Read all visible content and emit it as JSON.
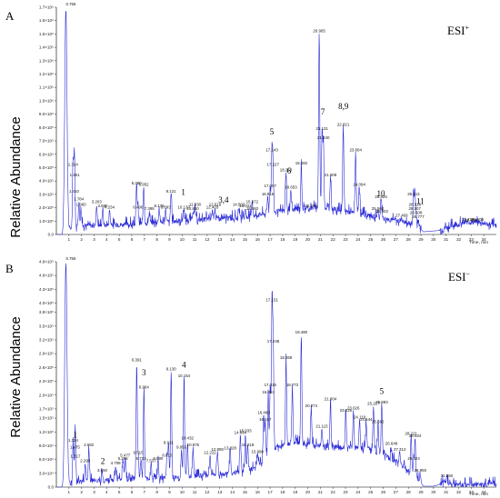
{
  "chart_data": [
    {
      "type": "line",
      "panel_label": "A",
      "ion_mode": "ESI",
      "ion_sign": "+",
      "ylabel": "Relative Abundance",
      "xlabel": "Time, min",
      "xlim": [
        0,
        35
      ],
      "ylim": [
        0,
        1700000.0
      ],
      "x_ticks": [
        1,
        2,
        3,
        4,
        5,
        6,
        7,
        8,
        9,
        10,
        11,
        12,
        13,
        14,
        15,
        16,
        17,
        18,
        19,
        20,
        21,
        22,
        23,
        24,
        25,
        26,
        27,
        28,
        29,
        30,
        31,
        32,
        33,
        34
      ],
      "y_ticks": [
        {
          "v": 1700000.0,
          "t": "1.7×10⁶"
        },
        {
          "v": 1600000.0,
          "t": "1.6×10⁶"
        },
        {
          "v": 1500000.0,
          "t": "1.5×10⁶"
        },
        {
          "v": 1400000.0,
          "t": "1.4×10⁶"
        },
        {
          "v": 1300000.0,
          "t": "1.3×10⁶"
        },
        {
          "v": 1200000.0,
          "t": "1.2×10⁶"
        },
        {
          "v": 1100000.0,
          "t": "1.1×10⁶"
        },
        {
          "v": 1000000.0,
          "t": "1.0×10⁶"
        },
        {
          "v": 900000.0,
          "t": "9.0×10⁵"
        },
        {
          "v": 800000.0,
          "t": "8.0×10⁵"
        },
        {
          "v": 700000.0,
          "t": "7.0×10⁵"
        },
        {
          "v": 600000.0,
          "t": "6.0×10⁵"
        },
        {
          "v": 500000.0,
          "t": "5.0×10⁵"
        },
        {
          "v": 400000.0,
          "t": "4.0×10⁵"
        },
        {
          "v": 300000.0,
          "t": "3.0×10⁵"
        },
        {
          "v": 200000.0,
          "t": "2.0×10⁵"
        },
        {
          "v": 100000.0,
          "t": "1.0×10⁵"
        },
        {
          "v": 0,
          "t": "0.0"
        }
      ],
      "baseline": [
        [
          0,
          20000.0
        ],
        [
          0.5,
          20000.0
        ],
        [
          2,
          60000.0
        ],
        [
          6,
          70000.0
        ],
        [
          10,
          100000.0
        ],
        [
          15,
          120000.0
        ],
        [
          17,
          160000.0
        ],
        [
          19,
          180000.0
        ],
        [
          21,
          200000.0
        ],
        [
          23,
          170000.0
        ],
        [
          25,
          130000.0
        ],
        [
          27,
          100000.0
        ],
        [
          28.8,
          60000.0
        ],
        [
          29.2,
          20000.0
        ],
        [
          30.5,
          30000.0
        ],
        [
          31.5,
          60000.0
        ],
        [
          32.5,
          80000.0
        ],
        [
          33.5,
          90000.0
        ],
        [
          34.3,
          70000.0
        ],
        [
          35,
          60000.0
        ]
      ],
      "peaks": [
        {
          "rt": 0.756,
          "h": 1700000.0,
          "label": "0.756"
        },
        {
          "rt": 1.324,
          "h": 500000.0,
          "label": "1.324"
        },
        {
          "rt": 1.451,
          "h": 420000.0,
          "label": "1.451"
        },
        {
          "rt": 1.41,
          "h": 300000.0,
          "label": "1.410"
        },
        {
          "rt": 1.784,
          "h": 240000.0,
          "label": "1.784"
        },
        {
          "rt": 1.96,
          "h": 200000.0,
          "label": "1.960"
        },
        {
          "rt": 3.203,
          "h": 220000.0,
          "label": "3.203"
        },
        {
          "rt": 3.69,
          "h": 190000.0,
          "label": "3.690"
        },
        {
          "rt": 4.234,
          "h": 180000.0,
          "label": "4.234"
        },
        {
          "rt": 6.38,
          "h": 360000.0,
          "label": "6.380"
        },
        {
          "rt": 6.952,
          "h": 350000.0,
          "label": "6.952"
        },
        {
          "rt": 6.496,
          "h": 180000.0,
          "label": "6.496"
        },
        {
          "rt": 7.395,
          "h": 170000.0,
          "label": "7.395"
        },
        {
          "rt": 8.176,
          "h": 190000.0,
          "label": "8.176"
        },
        {
          "rt": 8.693,
          "h": 180000.0,
          "label": "8.693"
        },
        {
          "rt": 9.121,
          "h": 300000.0,
          "label": "9.121"
        },
        {
          "rt": 10.137,
          "h": 180000.0,
          "label": "10.137"
        },
        {
          "rt": 10.85,
          "h": 170000.0,
          "label": "10.850"
        },
        {
          "rt": 11.03,
          "h": 200000.0,
          "label": "11.030"
        },
        {
          "rt": 12.403,
          "h": 180000.0,
          "label": "12.403"
        },
        {
          "rt": 12.618,
          "h": 200000.0,
          "label": "12.618"
        },
        {
          "rt": 14.503,
          "h": 200000.0,
          "label": "14.503"
        },
        {
          "rt": 15.031,
          "h": 190000.0,
          "label": "15.031"
        },
        {
          "rt": 15.592,
          "h": 170000.0,
          "label": "15.592"
        },
        {
          "rt": 15.572,
          "h": 220000.0,
          "label": "15.572"
        },
        {
          "rt": 16.816,
          "h": 280000.0,
          "label": "16.816"
        },
        {
          "rt": 17.007,
          "h": 340000.0,
          "label": "17.007"
        },
        {
          "rt": 17.143,
          "h": 610000.0,
          "label": "17.143"
        },
        {
          "rt": 17.227,
          "h": 500000.0,
          "label": "17.227"
        },
        {
          "rt": 18.258,
          "h": 460000.0,
          "label": "18.258"
        },
        {
          "rt": 18.653,
          "h": 330000.0,
          "label": "18.653"
        },
        {
          "rt": 19.482,
          "h": 510000.0,
          "label": "19.482"
        },
        {
          "rt": 20.26,
          "h": 190000.0,
          "label": "20.260"
        },
        {
          "rt": 20.905,
          "h": 1500000.0,
          "label": "20.905"
        },
        {
          "rt": 21.131,
          "h": 770000.0,
          "label": "21.131"
        },
        {
          "rt": 21.24,
          "h": 700000.0,
          "label": "21.240"
        },
        {
          "rt": 21.808,
          "h": 420000.0,
          "label": "21.808"
        },
        {
          "rt": 22.821,
          "h": 800000.0,
          "label": "22.821"
        },
        {
          "rt": 23.804,
          "h": 610000.0,
          "label": "23.804"
        },
        {
          "rt": 24.094,
          "h": 350000.0,
          "label": "24.094"
        },
        {
          "rt": 25.564,
          "h": 170000.0,
          "label": "25.564"
        },
        {
          "rt": 25.825,
          "h": 260000.0,
          "label": "25.825"
        },
        {
          "rt": 25.902,
          "h": 150000.0,
          "label": "25.902"
        },
        {
          "rt": 27.469,
          "h": 120000.0,
          "label": "27.469"
        },
        {
          "rt": 28.413,
          "h": 280000.0,
          "label": "28.413"
        },
        {
          "rt": 28.516,
          "h": 200000.0,
          "label": "28.516"
        },
        {
          "rt": 28.507,
          "h": 170000.0,
          "label": "28.507"
        },
        {
          "rt": 28.608,
          "h": 140000.0,
          "label": "28.608"
        },
        {
          "rt": 28.777,
          "h": 110000.0,
          "label": "28.777"
        },
        {
          "rt": 32.739,
          "h": 90000.0,
          "label": "32.739"
        },
        {
          "rt": 32.98,
          "h": 80000.0,
          "label": "32.980"
        },
        {
          "rt": 33.505,
          "h": 90000.0,
          "label": "33.505"
        }
      ],
      "compounds": [
        {
          "label": "1",
          "rt": 10.1,
          "h": 270000.0
        },
        {
          "label": "3,4",
          "rt": 13.3,
          "h": 210000.0
        },
        {
          "label": "5",
          "rt": 17.14,
          "h": 720000.0
        },
        {
          "label": "6",
          "rt": 18.5,
          "h": 430000.0
        },
        {
          "label": "7",
          "rt": 21.2,
          "h": 870000.0
        },
        {
          "label": "8,9",
          "rt": 22.83,
          "h": 910000.0
        },
        {
          "label": "10",
          "rt": 25.82,
          "h": 260000.0
        },
        {
          "label": "11",
          "rt": 28.95,
          "h": 200000.0
        }
      ]
    },
    {
      "type": "line",
      "panel_label": "B",
      "ion_mode": "ESI",
      "ion_sign": "−",
      "ylabel": "Relative Abundance",
      "xlabel": "Time, min",
      "xlim": [
        0,
        35
      ],
      "ylim": [
        0,
        490000.0
      ],
      "x_ticks": [
        1,
        2,
        3,
        4,
        5,
        6,
        7,
        8,
        9,
        10,
        11,
        12,
        13,
        14,
        15,
        16,
        17,
        18,
        19,
        20,
        21,
        22,
        23,
        24,
        25,
        26,
        27,
        28,
        29,
        30,
        31,
        32,
        33,
        34
      ],
      "y_ticks": [
        {
          "v": 490000.0,
          "t": "4.9×10⁵"
        },
        {
          "v": 460000.0,
          "t": "4.6×10⁵"
        },
        {
          "v": 430000.0,
          "t": "4.3×10⁵"
        },
        {
          "v": 400000.0,
          "t": "4.0×10⁵"
        },
        {
          "v": 380000.0,
          "t": "3.8×10⁵"
        },
        {
          "v": 350000.0,
          "t": "3.5×10⁵"
        },
        {
          "v": 320000.0,
          "t": "3.2×10⁵"
        },
        {
          "v": 290000.0,
          "t": "2.9×10⁵"
        },
        {
          "v": 260000.0,
          "t": "2.6×10⁵"
        },
        {
          "v": 230000.0,
          "t": "2.3×10⁵"
        },
        {
          "v": 200000.0,
          "t": "2.0×10⁵"
        },
        {
          "v": 170000.0,
          "t": "1.7×10⁵"
        },
        {
          "v": 150000.0,
          "t": "1.5×10⁵"
        },
        {
          "v": 120000.0,
          "t": "1.2×10⁵"
        },
        {
          "v": 90000.0,
          "t": "9.0×10⁴"
        },
        {
          "v": 60000.0,
          "t": "6.0×10⁴"
        },
        {
          "v": 30000.0,
          "t": "3.0×10⁴"
        },
        {
          "v": 0,
          "t": "0.0"
        }
      ],
      "baseline": [
        [
          0,
          1000.0
        ],
        [
          0.5,
          1000.0
        ],
        [
          1.5,
          10000.0
        ],
        [
          3,
          12000.0
        ],
        [
          6,
          15000.0
        ],
        [
          10,
          20000.0
        ],
        [
          13,
          26000.0
        ],
        [
          15,
          32000.0
        ],
        [
          16.5,
          50000.0
        ],
        [
          17.5,
          85000.0
        ],
        [
          19,
          95000.0
        ],
        [
          21,
          88000.0
        ],
        [
          23,
          85000.0
        ],
        [
          25,
          82000.0
        ],
        [
          27,
          55000.0
        ],
        [
          28.5,
          25000.0
        ],
        [
          29.2,
          2000.0
        ],
        [
          30,
          2000.0
        ],
        [
          30.8,
          8000.0
        ],
        [
          31.6,
          3000.0
        ],
        [
          35,
          3000.0
        ]
      ],
      "peaks": [
        {
          "rt": 0.756,
          "h": 490000.0,
          "label": "0.756"
        },
        {
          "rt": 1.334,
          "h": 95000.0,
          "label": "1.334"
        },
        {
          "rt": 1.475,
          "h": 80000.0,
          "label": "1.475"
        },
        {
          "rt": 1.517,
          "h": 60000.0,
          "label": "1.517"
        },
        {
          "rt": 2.298,
          "h": 50000.0,
          "label": "2.298"
        },
        {
          "rt": 2.582,
          "h": 85000.0,
          "label": "2.582"
        },
        {
          "rt": 3.65,
          "h": 30000.0,
          "label": "3.650"
        },
        {
          "rt": 4.708,
          "h": 45000.0,
          "label": "4.708"
        },
        {
          "rt": 5.477,
          "h": 62000.0,
          "label": "5.477"
        },
        {
          "rt": 5.296,
          "h": 55000.0,
          "label": "5.296"
        },
        {
          "rt": 6.515,
          "h": 68000.0,
          "label": "6.515"
        },
        {
          "rt": 6.391,
          "h": 270000.0,
          "label": "6.391"
        },
        {
          "rt": 6.964,
          "h": 210000.0,
          "label": "6.964"
        },
        {
          "rt": 6.733,
          "h": 55000.0,
          "label": "6.733"
        },
        {
          "rt": 7.537,
          "h": 50000.0,
          "label": "7.537"
        },
        {
          "rt": 8.09,
          "h": 55000.0,
          "label": "8.090"
        },
        {
          "rt": 8.81,
          "h": 62000.0,
          "label": "8.810"
        },
        {
          "rt": 8.921,
          "h": 90000.0,
          "label": "8.921"
        },
        {
          "rt": 9.13,
          "h": 250000.0,
          "label": "9.130"
        },
        {
          "rt": 9.955,
          "h": 80000.0,
          "label": "9.955"
        },
        {
          "rt": 10.154,
          "h": 235000.0,
          "label": "10.154"
        },
        {
          "rt": 10.432,
          "h": 100000.0,
          "label": "10.432"
        },
        {
          "rt": 10.875,
          "h": 85000.0,
          "label": "10.875"
        },
        {
          "rt": 12.222,
          "h": 68000.0,
          "label": "12.222"
        },
        {
          "rt": 12.808,
          "h": 75000.0,
          "label": "12.808"
        },
        {
          "rt": 13.828,
          "h": 78000.0,
          "label": "13.828"
        },
        {
          "rt": 14.634,
          "h": 112000.0,
          "label": "14.634"
        },
        {
          "rt": 15.033,
          "h": 116000.0,
          "label": "15.033"
        },
        {
          "rt": 15.218,
          "h": 85000.0,
          "label": "15.218"
        },
        {
          "rt": 15.998,
          "h": 70000.0,
          "label": "15.998"
        },
        {
          "rt": 16.617,
          "h": 140000.0,
          "label": "16.617"
        },
        {
          "rt": 16.49,
          "h": 155000.0,
          "label": "16.490"
        },
        {
          "rt": 16.853,
          "h": 200000.0,
          "label": "16.853"
        },
        {
          "rt": 17.015,
          "h": 215000.0,
          "label": "17.015"
        },
        {
          "rt": 17.151,
          "h": 400000.0,
          "label": "17.151"
        },
        {
          "rt": 17.248,
          "h": 310000.0,
          "label": "17.248"
        },
        {
          "rt": 18.268,
          "h": 275000.0,
          "label": "18.268"
        },
        {
          "rt": 18.772,
          "h": 215000.0,
          "label": "18.772"
        },
        {
          "rt": 19.48,
          "h": 330000.0,
          "label": "19.480"
        },
        {
          "rt": 20.274,
          "h": 170000.0,
          "label": "20.274"
        },
        {
          "rt": 21.115,
          "h": 125000.0,
          "label": "21.115"
        },
        {
          "rt": 21.804,
          "h": 185000.0,
          "label": "21.804"
        },
        {
          "rt": 23.026,
          "h": 160000.0,
          "label": "23.026"
        },
        {
          "rt": 23.626,
          "h": 165000.0,
          "label": "23.626"
        },
        {
          "rt": 24.119,
          "h": 145000.0,
          "label": "24.119"
        },
        {
          "rt": 24.644,
          "h": 140000.0,
          "label": "24.644"
        },
        {
          "rt": 25.227,
          "h": 175000.0,
          "label": "25.227"
        },
        {
          "rt": 25.883,
          "h": 178000.0,
          "label": "25.883"
        },
        {
          "rt": 25.582,
          "h": 135000.0,
          "label": "25.582"
        },
        {
          "rt": 28.221,
          "h": 110000.0,
          "label": "28.221"
        },
        {
          "rt": 26.648,
          "h": 88000.0,
          "label": "26.648"
        },
        {
          "rt": 27.312,
          "h": 75000.0,
          "label": "27.312"
        },
        {
          "rt": 28.534,
          "h": 105000.0,
          "label": "28.534"
        },
        {
          "rt": 28.424,
          "h": 55000.0,
          "label": "28.424"
        },
        {
          "rt": 28.95,
          "h": 30000.0,
          "label": "28.950"
        },
        {
          "rt": 31.05,
          "h": 18000.0,
          "label": "31.050"
        }
      ],
      "compounds": [
        {
          "label": "1",
          "rt": 1.5,
          "h": 100000.0
        },
        {
          "label": "2",
          "rt": 3.7,
          "h": 42000.0
        },
        {
          "label": "3",
          "rt": 6.96,
          "h": 235000.0
        },
        {
          "label": "4",
          "rt": 10.15,
          "h": 252000.0
        },
        {
          "label": "5",
          "rt": 25.88,
          "h": 195000.0
        }
      ]
    }
  ]
}
